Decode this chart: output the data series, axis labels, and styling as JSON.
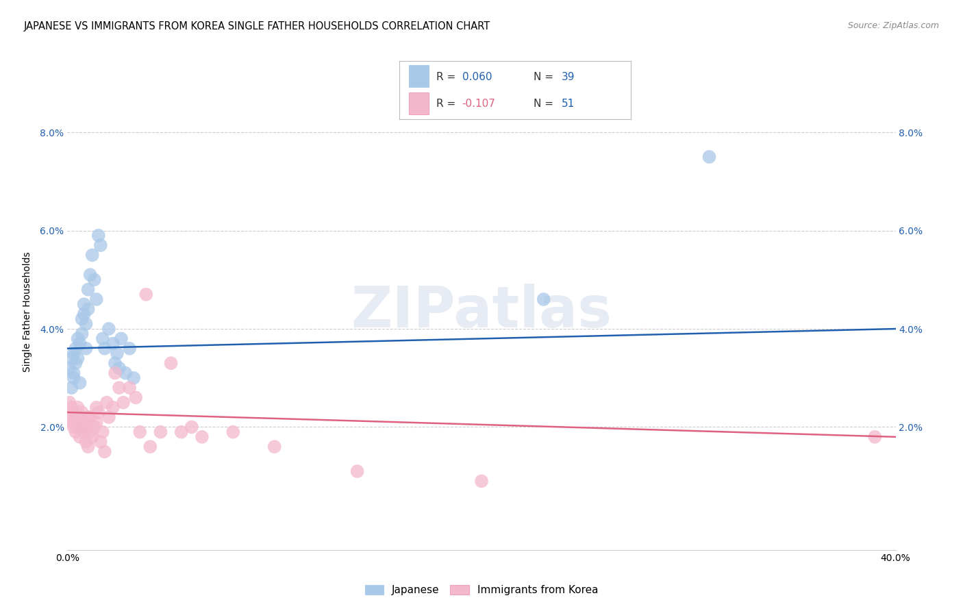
{
  "title": "JAPANESE VS IMMIGRANTS FROM KOREA SINGLE FATHER HOUSEHOLDS CORRELATION CHART",
  "source": "Source: ZipAtlas.com",
  "ylabel": "Single Father Households",
  "watermark": "ZIPatlas",
  "xlim": [
    0.0,
    0.4
  ],
  "ylim": [
    -0.005,
    0.092
  ],
  "yticks": [
    0.02,
    0.04,
    0.06,
    0.08
  ],
  "ytick_labels": [
    "2.0%",
    "4.0%",
    "6.0%",
    "8.0%"
  ],
  "xticks": [
    0.0,
    0.08,
    0.16,
    0.24,
    0.32,
    0.4
  ],
  "xtick_labels": [
    "0.0%",
    "",
    "",
    "",
    "",
    "40.0%"
  ],
  "japanese_color": "#a8c8e8",
  "korean_color": "#f4b8cc",
  "japanese_line_color": "#2060b0",
  "korean_line_color": "#e06080",
  "R_japanese": 0.06,
  "N_japanese": 39,
  "R_korean": -0.107,
  "N_korean": 51,
  "background_color": "#ffffff",
  "grid_color": "#cccccc",
  "title_fontsize": 10.5,
  "axis_fontsize": 10,
  "japanese_x": [
    0.001,
    0.002,
    0.002,
    0.003,
    0.003,
    0.003,
    0.004,
    0.004,
    0.005,
    0.005,
    0.006,
    0.006,
    0.007,
    0.007,
    0.008,
    0.008,
    0.009,
    0.009,
    0.01,
    0.01,
    0.011,
    0.012,
    0.013,
    0.014,
    0.015,
    0.016,
    0.017,
    0.018,
    0.02,
    0.022,
    0.023,
    0.024,
    0.025,
    0.026,
    0.028,
    0.03,
    0.032,
    0.23,
    0.31
  ],
  "japanese_y": [
    0.032,
    0.028,
    0.034,
    0.03,
    0.035,
    0.031,
    0.036,
    0.033,
    0.038,
    0.034,
    0.029,
    0.037,
    0.042,
    0.039,
    0.045,
    0.043,
    0.041,
    0.036,
    0.048,
    0.044,
    0.051,
    0.055,
    0.05,
    0.046,
    0.059,
    0.057,
    0.038,
    0.036,
    0.04,
    0.037,
    0.033,
    0.035,
    0.032,
    0.038,
    0.031,
    0.036,
    0.03,
    0.046,
    0.075
  ],
  "korean_x": [
    0.001,
    0.001,
    0.002,
    0.002,
    0.003,
    0.003,
    0.004,
    0.004,
    0.005,
    0.005,
    0.006,
    0.006,
    0.007,
    0.007,
    0.008,
    0.008,
    0.009,
    0.009,
    0.01,
    0.01,
    0.011,
    0.011,
    0.012,
    0.013,
    0.014,
    0.014,
    0.015,
    0.016,
    0.017,
    0.018,
    0.019,
    0.02,
    0.022,
    0.023,
    0.025,
    0.027,
    0.03,
    0.033,
    0.035,
    0.038,
    0.04,
    0.045,
    0.05,
    0.055,
    0.06,
    0.065,
    0.08,
    0.1,
    0.14,
    0.2,
    0.39
  ],
  "korean_y": [
    0.025,
    0.022,
    0.021,
    0.024,
    0.02,
    0.023,
    0.019,
    0.022,
    0.02,
    0.024,
    0.018,
    0.022,
    0.02,
    0.023,
    0.019,
    0.021,
    0.017,
    0.02,
    0.016,
    0.022,
    0.022,
    0.019,
    0.018,
    0.02,
    0.024,
    0.021,
    0.023,
    0.017,
    0.019,
    0.015,
    0.025,
    0.022,
    0.024,
    0.031,
    0.028,
    0.025,
    0.028,
    0.026,
    0.019,
    0.047,
    0.016,
    0.019,
    0.033,
    0.019,
    0.02,
    0.018,
    0.019,
    0.016,
    0.011,
    0.009,
    0.018
  ]
}
